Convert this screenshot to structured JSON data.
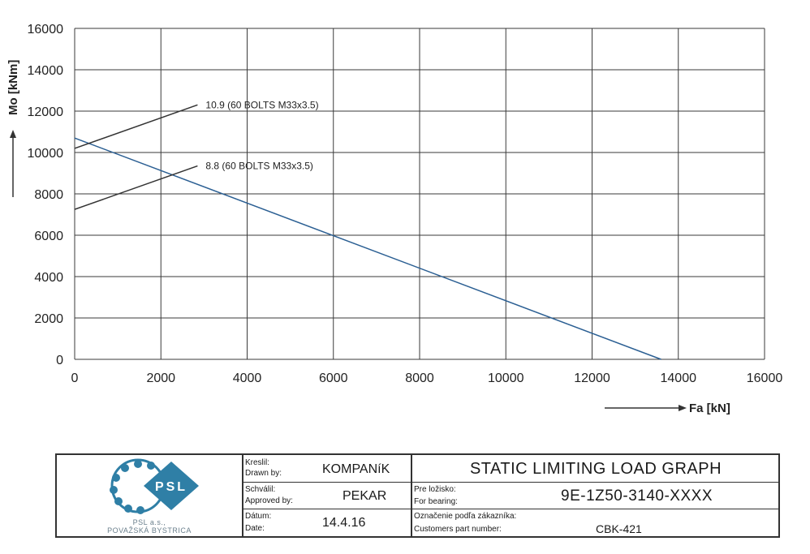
{
  "chart_data": {
    "type": "line",
    "xlabel": "Fa [kN]",
    "ylabel": "Mo [kNm]",
    "xlim": [
      0,
      16000
    ],
    "ylim": [
      0,
      16000
    ],
    "xticks": [
      0,
      2000,
      4000,
      6000,
      8000,
      10000,
      12000,
      14000,
      16000
    ],
    "yticks": [
      0,
      2000,
      4000,
      6000,
      8000,
      10000,
      12000,
      14000,
      16000
    ],
    "grid": true,
    "series": [
      {
        "points": [
          [
            0,
            10700
          ],
          [
            13600,
            0
          ]
        ],
        "color": "#2b5f93"
      },
      {
        "name": "10.9 (60 BOLTS M33x3.5)",
        "points": [
          [
            0,
            10200
          ],
          [
            2850,
            12300
          ]
        ],
        "color": "#333333"
      },
      {
        "name": "8.8 (60 BOLTS M33x3.5)",
        "points": [
          [
            0,
            7250
          ],
          [
            2850,
            9350
          ]
        ],
        "color": "#333333"
      }
    ]
  },
  "title_block": {
    "logo": {
      "brand": "PSL",
      "company_line1": "PSL a.s.,",
      "company_line2": "POVAŽSKÁ BYSTRICA"
    },
    "drawn_by": {
      "label_sk": "Kreslil:",
      "label_en": "Drawn by:",
      "value": "KOMPANíK"
    },
    "approved_by": {
      "label_sk": "Schválil:",
      "label_en": "Approved by:",
      "value": "PEKAR"
    },
    "date": {
      "label_sk": "Dátum:",
      "label_en": "Date:",
      "value": "14.4.16"
    },
    "title": "STATIC LIMITING LOAD GRAPH",
    "bearing": {
      "label_sk": "Pre ložisko:",
      "label_en": "For bearing:",
      "value": "9E-1Z50-3140-XXXX"
    },
    "customer": {
      "label_sk": "Označenie podľa zákazníka:",
      "label_en": "Customers part number:",
      "value": "CBK-421"
    }
  }
}
